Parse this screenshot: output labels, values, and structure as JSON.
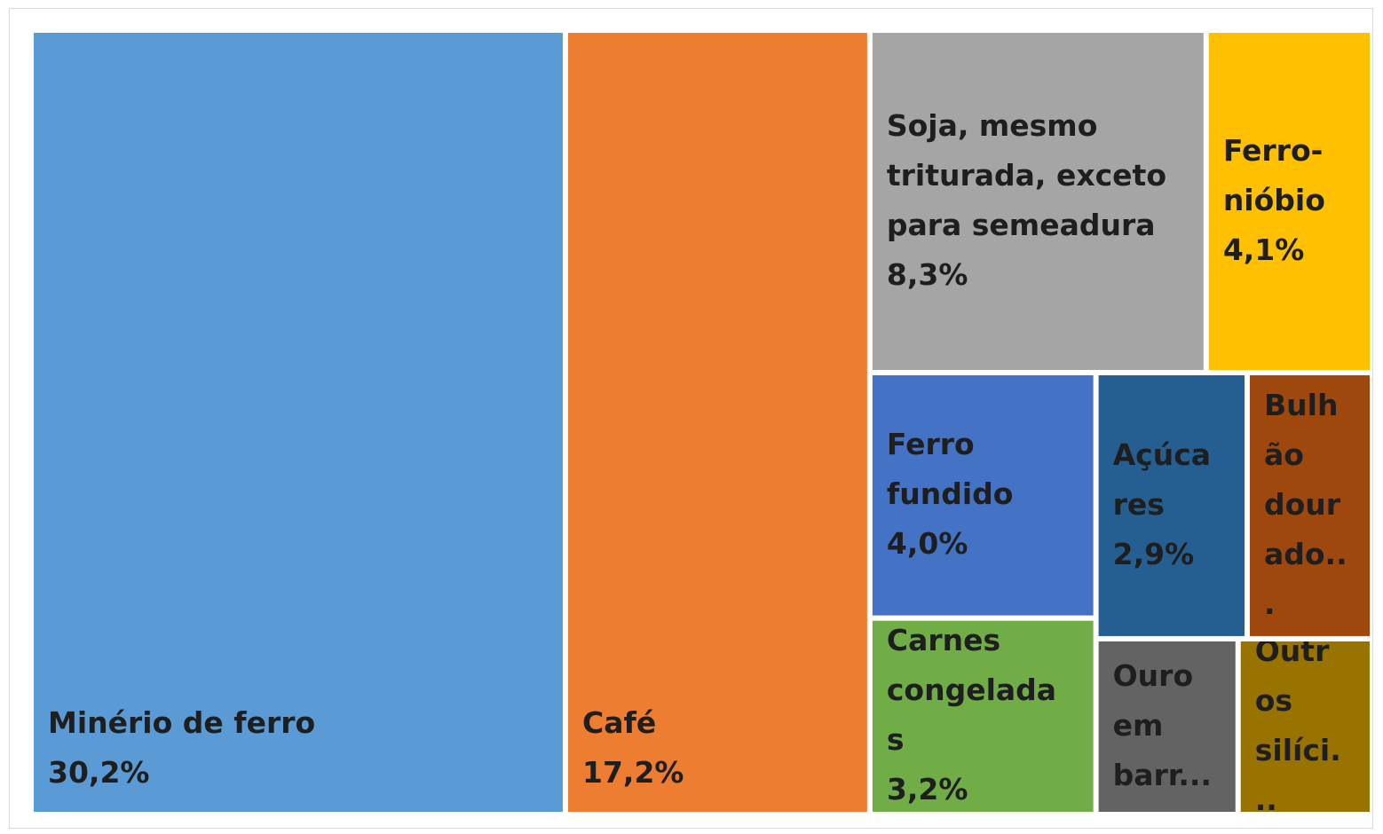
{
  "chart_data": {
    "type": "treemap",
    "categories": [
      "Minério de ferro",
      "Café",
      "Soja, mesmo triturada, exceto para semeadura",
      "Ferro-nióbio",
      "Ferro fundido",
      "Carnes congeladas",
      "Açúcares",
      "Bulhão dourado...",
      "Ouro em barr...",
      "Outros silíci..."
    ],
    "values": [
      30.2,
      17.2,
      8.3,
      4.1,
      4.0,
      3.2,
      2.9,
      2.4,
      1.8,
      1.7
    ],
    "value_labels": [
      "30,2%",
      "17,2%",
      "8,3%",
      "4,1%",
      "4,0%",
      "3,2%",
      "2,9%",
      null,
      null,
      null
    ],
    "colors": [
      "#5b9bd5",
      "#ed7d31",
      "#a5a5a5",
      "#ffc000",
      "#4472c4",
      "#70ad47",
      "#255e91",
      "#9e480e",
      "#636363",
      "#997300"
    ]
  }
}
